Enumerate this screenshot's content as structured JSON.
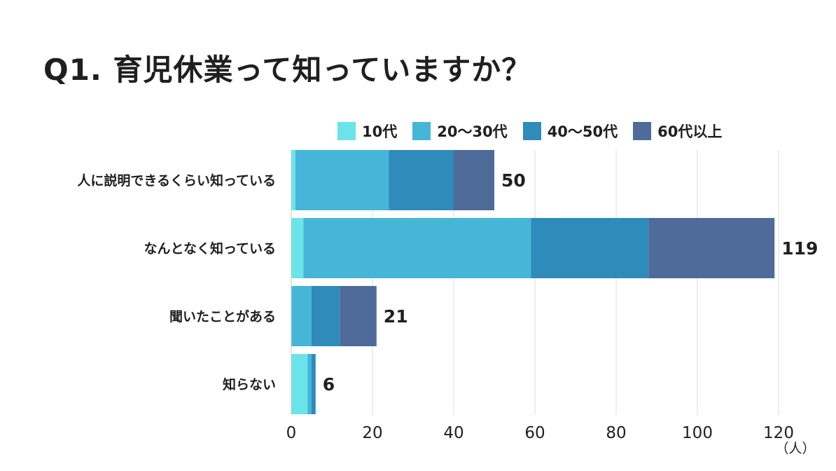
{
  "title": "Q1. 育児休業って知っていますか？",
  "colors": {
    "series": [
      "#6ae4e8",
      "#45b6d8",
      "#2f8bba",
      "#4f6b99"
    ],
    "grid": "#dedede",
    "text": "#1f1f1f"
  },
  "chart_data": {
    "type": "bar",
    "orientation": "horizontal",
    "stacked": true,
    "title": "Q1. 育児休業って知っていますか？",
    "categories": [
      "人に説明できるくらい知っている",
      "なんとなく知っている",
      "聞いたことがある",
      "知らない"
    ],
    "series": [
      {
        "name": "10代",
        "values": [
          1,
          3,
          0,
          4
        ]
      },
      {
        "name": "20〜30代",
        "values": [
          23,
          56,
          5,
          1
        ]
      },
      {
        "name": "40〜50代",
        "values": [
          16,
          29,
          7,
          1
        ]
      },
      {
        "name": "60代以上",
        "values": [
          10,
          31,
          9,
          0
        ]
      }
    ],
    "totals": [
      "50",
      "119",
      "21",
      "6"
    ],
    "xlim": [
      0,
      120
    ],
    "xticks": [
      "0",
      "20",
      "40",
      "60",
      "80",
      "100",
      "120"
    ],
    "xunit": "（人）",
    "grid": true,
    "legend": "top"
  }
}
